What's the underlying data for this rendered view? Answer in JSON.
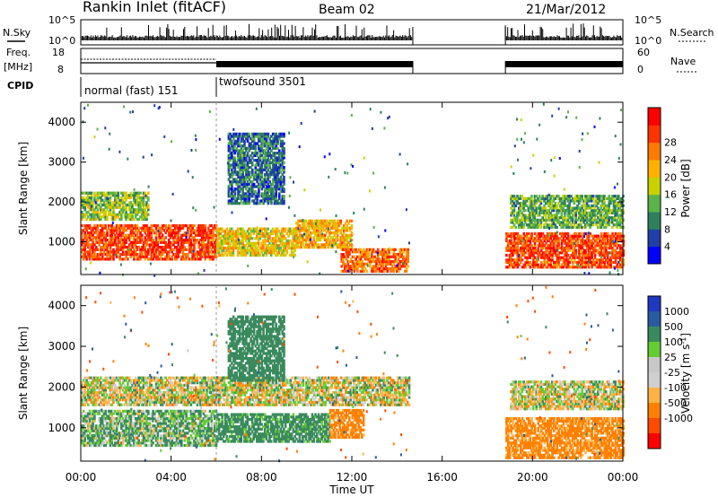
{
  "header": {
    "station": "Rankin Inlet (fitACF)",
    "beam": "Beam 02",
    "date": "21/Mar/2012"
  },
  "panels": {
    "nsky_label": "N.Sky",
    "nsky_ticks": [
      "10^5",
      "10^0"
    ],
    "nsearch_label": "N.Search",
    "nsearch_ticks": [
      "10^5",
      "10^0"
    ],
    "freq_label": "Freq.",
    "freq_unit": "[MHz]",
    "freq_ticks": [
      "18",
      "8"
    ],
    "nave_label": "Nave",
    "nave_ticks": [
      "60",
      "0"
    ],
    "cpid_label": "CPID",
    "cpid_modes": [
      {
        "name": "normal (fast) 151",
        "start_hour": 0,
        "end_hour": 6
      },
      {
        "name": "twofsound 3501",
        "start_hour": 6,
        "end_hour": 24
      }
    ]
  },
  "colors": {
    "power_scale": [
      "#0000ff",
      "#1f3fa6",
      "#2f7f5f",
      "#5ab34a",
      "#c8d200",
      "#ffb000",
      "#ff7a00",
      "#ff3300",
      "#ff0000"
    ],
    "velocity_scale": [
      "#ff0000",
      "#ff4a00",
      "#ff8000",
      "#ffb347",
      "#cfcfcf",
      "#c8c8c8",
      "#66cc33",
      "#3a8a5e",
      "#2a5aa0",
      "#2038c0"
    ]
  },
  "chart_data": [
    {
      "type": "heatmap",
      "name": "power",
      "title": "",
      "xlabel": "Time UT",
      "ylabel": "Slant Range [km]",
      "xlim": [
        0,
        24
      ],
      "ylim": [
        180,
        4500
      ],
      "x_ticks": [
        "00:00",
        "04:00",
        "08:00",
        "12:00",
        "16:00",
        "20:00",
        "00:00"
      ],
      "y_ticks": [
        "1000",
        "2000",
        "3000",
        "4000"
      ],
      "colorbar_label": "Power [dB]",
      "colorbar_ticks": [
        "4",
        "8",
        "12",
        "16",
        "20",
        "24",
        "28"
      ],
      "data_gap_hours": [
        14.7,
        18.8
      ],
      "bands": [
        {
          "t0": 0.0,
          "t1": 6.0,
          "r0": 600,
          "r1": 1500,
          "value": 26
        },
        {
          "t0": 0.0,
          "t1": 3.0,
          "r0": 1600,
          "r1": 2300,
          "value": 14
        },
        {
          "t0": 6.0,
          "t1": 9.5,
          "r0": 700,
          "r1": 1400,
          "value": 18
        },
        {
          "t0": 6.5,
          "t1": 9.0,
          "r0": 2000,
          "r1": 3800,
          "value": 8
        },
        {
          "t0": 9.5,
          "t1": 12.0,
          "r0": 900,
          "r1": 1600,
          "value": 20
        },
        {
          "t0": 11.5,
          "t1": 14.5,
          "r0": 300,
          "r1": 900,
          "value": 24
        },
        {
          "t0": 18.8,
          "t1": 24.0,
          "r0": 400,
          "r1": 1300,
          "value": 26
        },
        {
          "t0": 19.0,
          "t1": 24.0,
          "r0": 1400,
          "r1": 2200,
          "value": 12
        }
      ]
    },
    {
      "type": "heatmap",
      "name": "velocity",
      "title": "",
      "xlabel": "Time UT",
      "ylabel": "Slant Range [km]",
      "xlim": [
        0,
        24
      ],
      "ylim": [
        180,
        4500
      ],
      "x_ticks": [
        "00:00",
        "04:00",
        "08:00",
        "12:00",
        "16:00",
        "20:00",
        "00:00"
      ],
      "y_ticks": [
        "1000",
        "2000",
        "3000",
        "4000"
      ],
      "colorbar_label": "Velocity [m s^-1]",
      "colorbar_ticks": [
        "1000",
        "500",
        "100",
        "25",
        "-25",
        "-100",
        "-500",
        "-1000"
      ],
      "data_gap_hours": [
        14.7,
        18.8
      ],
      "bands": [
        {
          "t0": 0.0,
          "t1": 6.0,
          "r0": 600,
          "r1": 1500,
          "value": 100
        },
        {
          "t0": 0.0,
          "t1": 14.5,
          "r0": 1600,
          "r1": 2300,
          "value": 0
        },
        {
          "t0": 6.0,
          "t1": 11.0,
          "r0": 700,
          "r1": 1400,
          "value": 200
        },
        {
          "t0": 11.0,
          "t1": 12.5,
          "r0": 800,
          "r1": 1500,
          "value": -200
        },
        {
          "t0": 6.5,
          "t1": 9.0,
          "r0": 2200,
          "r1": 3800,
          "value": 300
        },
        {
          "t0": 18.8,
          "t1": 24.0,
          "r0": 300,
          "r1": 1300,
          "value": -200
        },
        {
          "t0": 19.0,
          "t1": 24.0,
          "r0": 1500,
          "r1": 2200,
          "value": 0
        }
      ]
    }
  ]
}
